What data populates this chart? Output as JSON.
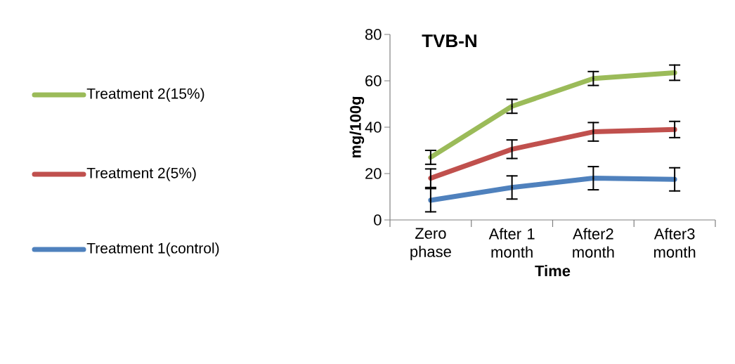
{
  "chart_data": {
    "type": "line",
    "title": "TVB-N",
    "xlabel": "Time",
    "ylabel": "mg/100g",
    "categories": [
      "Zero phase",
      "After 1 month",
      "After2 month",
      "After3 month"
    ],
    "ylim": [
      0,
      80
    ],
    "yticks": [
      0,
      20,
      40,
      60,
      80
    ],
    "grid": false,
    "legend": "left",
    "marker": "none",
    "line_style": "solid",
    "series": [
      {
        "name": "Treatment 2(15%)",
        "color": "#9bbb59",
        "values": [
          27,
          49,
          61,
          63.5
        ],
        "errors": [
          3,
          3,
          3,
          3.3
        ]
      },
      {
        "name": "Treatment 2(5%)",
        "color": "#c0504d",
        "values": [
          18,
          30.5,
          38,
          39
        ],
        "errors": [
          4,
          4,
          4,
          3.5
        ]
      },
      {
        "name": "Treatment 1(control)",
        "color": "#4f81bd",
        "values": [
          8.5,
          14,
          18,
          17.5
        ],
        "errors": [
          5,
          5,
          5,
          5
        ]
      }
    ]
  }
}
